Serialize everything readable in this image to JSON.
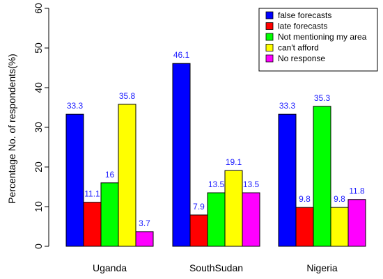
{
  "chart_data": {
    "type": "bar",
    "title": "",
    "xlabel": "",
    "ylabel": "Percentage No. of respondents(%)",
    "ylim": [
      0,
      60
    ],
    "yticks": [
      0,
      10,
      20,
      30,
      40,
      50,
      60
    ],
    "grid": false,
    "legend_position": "top-right",
    "categories": [
      "Uganda",
      "SouthSudan",
      "Nigeria"
    ],
    "series": [
      {
        "name": "false forecasts",
        "color": "#0000ff",
        "values": [
          33.3,
          46.1,
          33.3
        ],
        "labels": [
          "33.3",
          "46.1",
          "33.3"
        ]
      },
      {
        "name": "late forecasts",
        "color": "#ff0000",
        "values": [
          11.1,
          7.9,
          9.8
        ],
        "labels": [
          "11.1",
          "7.9",
          "9.8"
        ]
      },
      {
        "name": "Not mentioning my area",
        "color": "#00ff00",
        "values": [
          16,
          13.5,
          35.3
        ],
        "labels": [
          "16",
          "13.5",
          "35.3"
        ]
      },
      {
        "name": "can't afford",
        "color": "#ffff00",
        "values": [
          35.8,
          19.1,
          9.8
        ],
        "labels": [
          "35.8",
          "19.1",
          "9.8"
        ]
      },
      {
        "name": "No response",
        "color": "#ff00ff",
        "values": [
          3.7,
          13.5,
          11.8
        ],
        "labels": [
          "3.7",
          "13.5",
          "11.8"
        ]
      }
    ]
  }
}
